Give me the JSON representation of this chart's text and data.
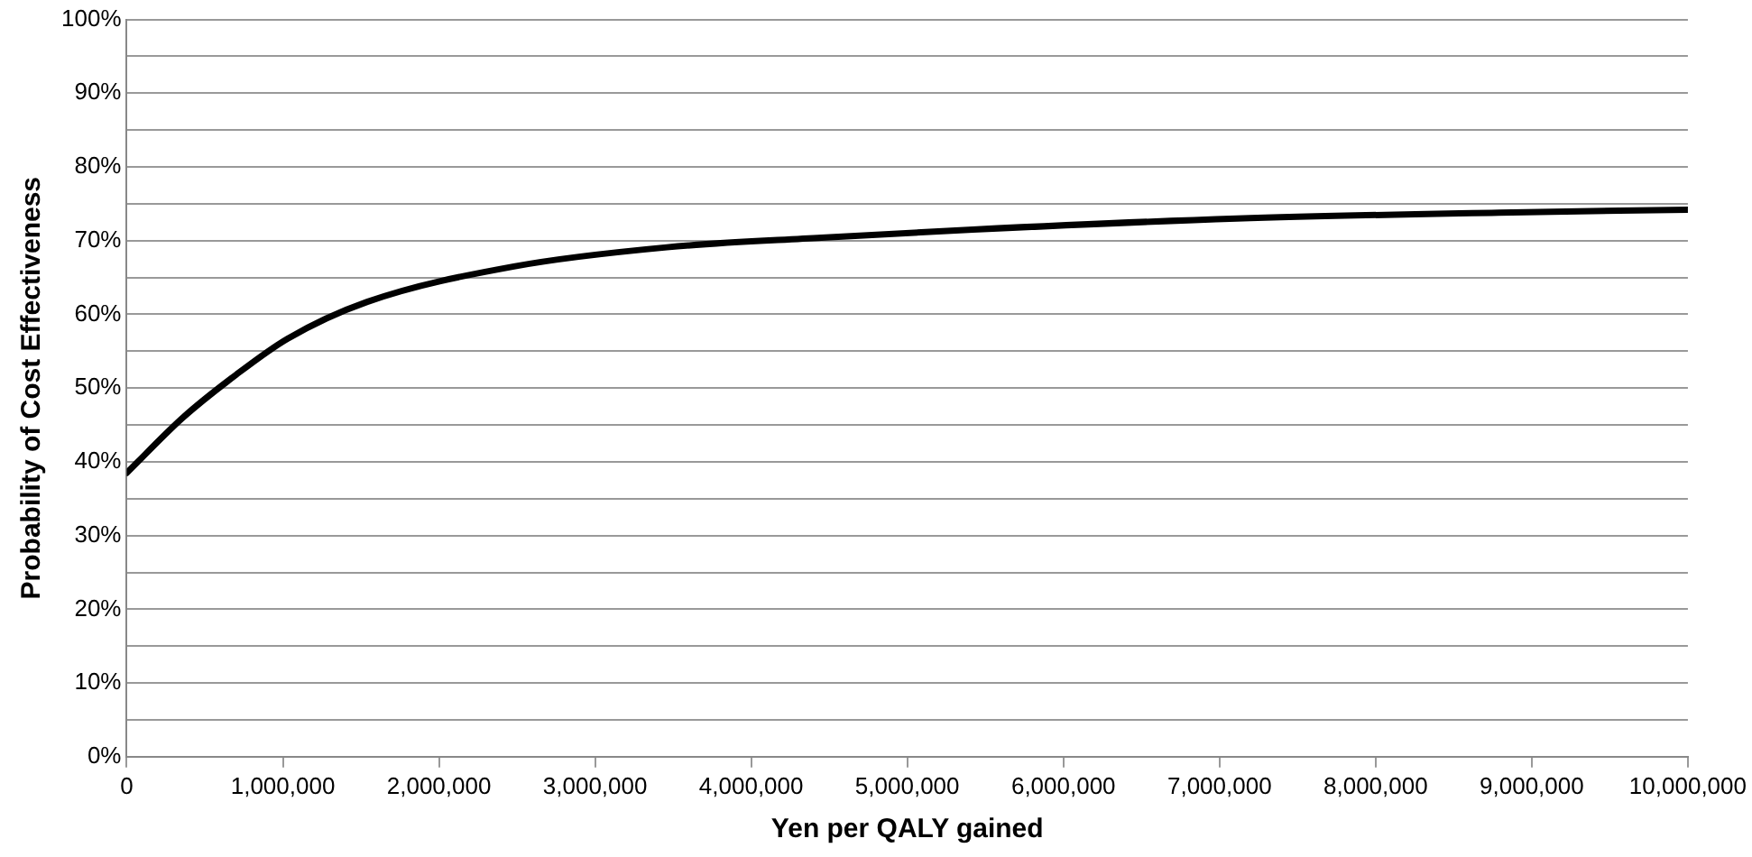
{
  "chart_data": {
    "type": "line",
    "xlabel": "Yen per QALY gained",
    "ylabel": "Probability of Cost Effectiveness",
    "x": [
      0,
      360000,
      700000,
      1030000,
      1540000,
      2480000,
      3460000,
      4450000,
      5420000,
      7110000,
      8790000,
      10000000
    ],
    "series": [
      {
        "color": "#000000",
        "values": [
          38.5,
          46,
          51.8,
          56.7,
          61.7,
          66.5,
          69.1,
          70.4,
          71.5,
          73,
          73.8,
          74.2
        ]
      }
    ],
    "xlim": [
      0,
      10000000
    ],
    "xticks": [
      0,
      {
        "value": 1000000,
        "label": "1,000,000"
      },
      {
        "value": 2000000,
        "label": "2,000,000"
      },
      {
        "value": 3000000,
        "label": "3,000,000"
      },
      {
        "value": 4000000,
        "label": "4,000,000"
      },
      {
        "value": 5000000,
        "label": "5,000,000"
      },
      {
        "value": 6000000,
        "label": "6,000,000"
      },
      {
        "value": 7000000,
        "label": "7,000,000"
      },
      {
        "value": 8000000,
        "label": "8,000,000"
      },
      {
        "value": 9000000,
        "label": "9,000,000"
      },
      {
        "value": 10000000,
        "label": "10,000,000"
      }
    ],
    "ylim": [
      0,
      100
    ],
    "yticks": [
      {
        "value": 0,
        "label": "0%"
      },
      {
        "value": 5,
        "label": null
      },
      {
        "value": 10,
        "label": "10%"
      },
      {
        "value": 15,
        "label": null
      },
      {
        "value": 20,
        "label": "20%"
      },
      {
        "value": 25,
        "label": null
      },
      {
        "value": 30,
        "label": "30%"
      },
      {
        "value": 35,
        "label": null
      },
      {
        "value": 40,
        "label": "40%"
      },
      {
        "value": 45,
        "label": null
      },
      {
        "value": 50,
        "label": "50%"
      },
      {
        "value": 55,
        "label": null
      },
      {
        "value": 60,
        "label": "60%"
      },
      {
        "value": 65,
        "label": null
      },
      {
        "value": 70,
        "label": "70%"
      },
      {
        "value": 75,
        "label": null
      },
      {
        "value": 80,
        "label": "80%"
      },
      {
        "value": 85,
        "label": null
      },
      {
        "value": 90,
        "label": "90%"
      },
      {
        "value": 95,
        "label": null
      },
      {
        "value": 100,
        "label": "100%"
      }
    ],
    "grid": "y",
    "legend": false,
    "marker": "none",
    "line_style": "solid"
  }
}
